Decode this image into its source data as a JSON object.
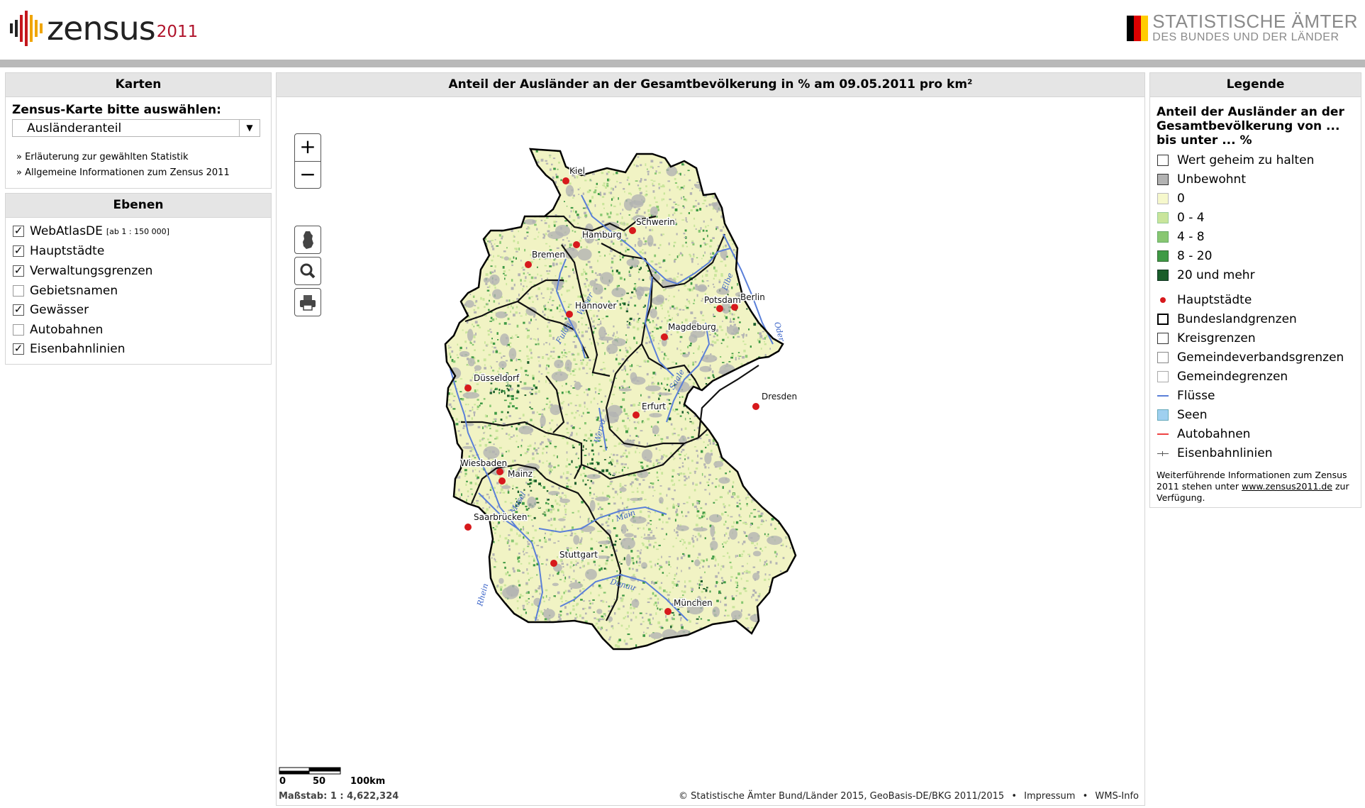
{
  "header": {
    "logo_text": "zensus",
    "logo_year": "2011",
    "right_line1": "STATISTISCHE ÄMTER",
    "right_line2": "DES BUNDES UND DER LÄNDER"
  },
  "karten": {
    "title": "Karten",
    "select_label": "Zensus-Karte bitte auswählen:",
    "select_value": "Ausländeranteil",
    "links": [
      "Erläuterung zur gewählten Statistik",
      "Allgemeine Informationen zum Zensus 2011"
    ]
  },
  "ebenen": {
    "title": "Ebenen",
    "items": [
      {
        "label": "WebAtlasDE",
        "note": "[ab 1 : 150 000]",
        "checked": true
      },
      {
        "label": "Hauptstädte",
        "checked": true
      },
      {
        "label": "Verwaltungsgrenzen",
        "checked": true
      },
      {
        "label": "Gebietsnamen",
        "checked": false
      },
      {
        "label": "Gewässer",
        "checked": true
      },
      {
        "label": "Autobahnen",
        "checked": false
      },
      {
        "label": "Eisenbahnlinien",
        "checked": true
      }
    ]
  },
  "map": {
    "title": "Anteil der Ausländer an der Gesamtbevölkerung in % am 09.05.2011 pro km²",
    "zoom_in": "+",
    "zoom_out": "−",
    "cities": [
      {
        "name": "Kiel"
      },
      {
        "name": "Hamburg"
      },
      {
        "name": "Schwerin"
      },
      {
        "name": "Bremen"
      },
      {
        "name": "Hannover"
      },
      {
        "name": "Berlin"
      },
      {
        "name": "Potsdam"
      },
      {
        "name": "Magdeburg"
      },
      {
        "name": "Düsseldorf"
      },
      {
        "name": "Dresden"
      },
      {
        "name": "Erfurt"
      },
      {
        "name": "Wiesbaden"
      },
      {
        "name": "Mainz"
      },
      {
        "name": "Saarbrücken"
      },
      {
        "name": "Stuttgart"
      },
      {
        "name": "München"
      }
    ],
    "rivers": [
      "Elbe",
      "Weser",
      "Oder",
      "Rhein",
      "Main",
      "Donau",
      "Mosel",
      "Saale",
      "Werra",
      "Fulda"
    ],
    "scalebar_ticks": [
      "0",
      "50",
      "100km"
    ],
    "scale_text": "Maßstab: 1 : 4,622,324",
    "copyright": "© Statistische Ämter Bund/Länder 2015, GeoBasis-DE/BKG 2011/2015",
    "impressum": "Impressum",
    "wms": "WMS-Info",
    "bullet": "•"
  },
  "legend": {
    "title": "Legende",
    "heading": "Anteil der Ausländer an der Gesamtbevölkerung von ... bis unter ... %",
    "items": [
      {
        "label": "Wert geheim zu halten",
        "color": "#ffffff"
      },
      {
        "label": "Unbewohnt",
        "color": "#b3b3b3"
      },
      {
        "label": "0",
        "color": "#f6f8cc"
      },
      {
        "label": "0 - 4",
        "color": "#c9e59b"
      },
      {
        "label": "4 - 8",
        "color": "#88c772"
      },
      {
        "label": "8 - 20",
        "color": "#3f9a45"
      },
      {
        "label": "20 und mehr",
        "color": "#1a5e2a"
      }
    ],
    "symbols": [
      {
        "label": "Hauptstädte"
      },
      {
        "label": "Bundeslandgrenzen"
      },
      {
        "label": "Kreisgrenzen"
      },
      {
        "label": "Gemeindeverbandsgrenzen"
      },
      {
        "label": "Gemeindegrenzen"
      },
      {
        "label": "Flüsse"
      },
      {
        "label": "Seen"
      },
      {
        "label": "Autobahnen"
      },
      {
        "label": "Eisenbahnlinien"
      }
    ],
    "note_pre": "Weiterführende Informationen zum Zensus 2011 stehen unter",
    "note_link": "www.zensus2011.de",
    "note_post": "zur Verfügung."
  },
  "colors": {
    "accent_red": "#d7191c",
    "river_blue": "#5a7fd8",
    "header_bar": "#b9b9b9"
  }
}
